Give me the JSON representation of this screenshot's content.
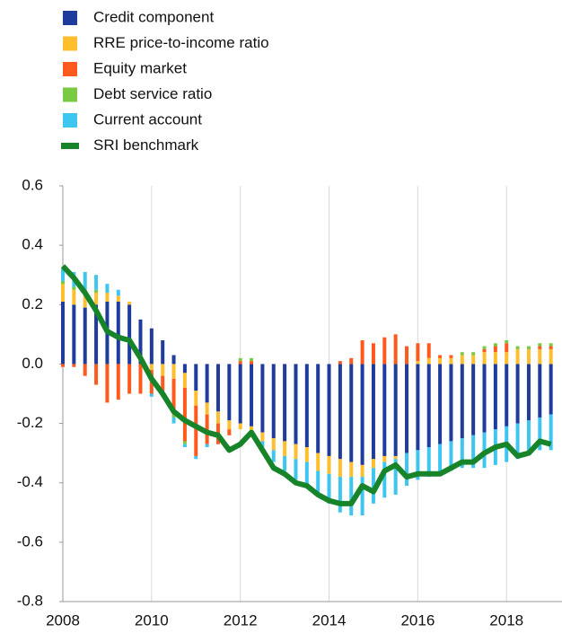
{
  "chart_data": {
    "type": "stacked_bar_line",
    "x": [
      2008,
      2008.25,
      2008.5,
      2008.75,
      2009,
      2009.25,
      2009.5,
      2009.75,
      2010,
      2010.25,
      2010.5,
      2010.75,
      2011,
      2011.25,
      2011.5,
      2011.75,
      2012,
      2012.25,
      2012.5,
      2012.75,
      2013,
      2013.25,
      2013.5,
      2013.75,
      2014,
      2014.25,
      2014.5,
      2014.75,
      2015,
      2015.25,
      2015.5,
      2015.75,
      2016,
      2016.25,
      2016.5,
      2016.75,
      2017,
      2017.25,
      2017.5,
      2017.75,
      2018,
      2018.25,
      2018.5,
      2018.75,
      2019
    ],
    "series": [
      {
        "name": "Credit component",
        "color": "#1f3b9c",
        "values": [
          0.21,
          0.2,
          0.19,
          0.2,
          0.21,
          0.21,
          0.2,
          0.15,
          0.12,
          0.08,
          0.03,
          -0.03,
          -0.09,
          -0.13,
          -0.16,
          -0.19,
          -0.2,
          -0.21,
          -0.23,
          -0.25,
          -0.26,
          -0.27,
          -0.28,
          -0.3,
          -0.31,
          -0.32,
          -0.33,
          -0.34,
          -0.32,
          -0.31,
          -0.31,
          -0.3,
          -0.29,
          -0.28,
          -0.27,
          -0.26,
          -0.25,
          -0.24,
          -0.23,
          -0.22,
          -0.21,
          -0.2,
          -0.19,
          -0.18,
          -0.17
        ]
      },
      {
        "name": "RRE price-to-income ratio",
        "color": "#ffbe2e",
        "values": [
          0.06,
          0.05,
          0.05,
          0.04,
          0.03,
          0.02,
          0.01,
          0,
          -0.02,
          -0.04,
          -0.05,
          -0.05,
          -0.05,
          -0.04,
          -0.04,
          -0.03,
          -0.02,
          -0.02,
          -0.03,
          -0.04,
          -0.05,
          -0.05,
          -0.05,
          -0.06,
          -0.06,
          -0.06,
          -0.05,
          -0.04,
          -0.03,
          -0.02,
          -0.01,
          0,
          0.01,
          0.02,
          0.02,
          0.02,
          0.03,
          0.03,
          0.04,
          0.04,
          0.04,
          0.05,
          0.05,
          0.05,
          0.05
        ]
      },
      {
        "name": "Equity market",
        "color": "#ff5a1e",
        "values": [
          -0.01,
          -0.01,
          -0.04,
          -0.07,
          -0.13,
          -0.12,
          -0.1,
          -0.1,
          -0.08,
          -0.05,
          -0.12,
          -0.18,
          -0.17,
          -0.1,
          -0.07,
          -0.02,
          0.01,
          0.01,
          0,
          0,
          0,
          0,
          0,
          0,
          0,
          0.01,
          0.02,
          0.08,
          0.07,
          0.09,
          0.1,
          0.06,
          0.06,
          0.05,
          0.01,
          0.01,
          0,
          0,
          0.01,
          0.02,
          0.03,
          0,
          0,
          0.01,
          0.01
        ]
      },
      {
        "name": "Debt service ratio",
        "color": "#7ac943",
        "values": [
          0.01,
          0.01,
          0.01,
          0.01,
          0,
          0,
          0,
          0,
          0,
          0,
          -0.01,
          -0.01,
          0,
          0,
          0,
          0,
          0.01,
          0.01,
          0,
          0,
          0,
          0,
          0,
          0,
          0,
          0,
          0,
          0,
          0,
          0,
          0,
          0,
          0,
          0,
          0,
          0,
          0.01,
          0.01,
          0.01,
          0.01,
          0.01,
          0.01,
          0.01,
          0.01,
          0.01
        ]
      },
      {
        "name": "Current account",
        "color": "#3ec6f0",
        "values": [
          0.04,
          0.05,
          0.06,
          0.05,
          0.03,
          0.02,
          0,
          0,
          -0.01,
          -0.02,
          -0.02,
          -0.01,
          -0.01,
          -0.01,
          0,
          0,
          0,
          0,
          -0.02,
          -0.04,
          -0.05,
          -0.07,
          -0.08,
          -0.08,
          -0.1,
          -0.12,
          -0.13,
          -0.13,
          -0.12,
          -0.12,
          -0.12,
          -0.11,
          -0.1,
          -0.1,
          -0.1,
          -0.1,
          -0.1,
          -0.11,
          -0.12,
          -0.12,
          -0.12,
          -0.12,
          -0.11,
          -0.11,
          -0.12
        ]
      },
      {
        "name": "SRI benchmark",
        "color": "#17842a",
        "kind": "line",
        "values": [
          0.33,
          0.29,
          0.24,
          0.18,
          0.11,
          0.09,
          0.08,
          0.02,
          -0.05,
          -0.1,
          -0.16,
          -0.19,
          -0.21,
          -0.23,
          -0.24,
          -0.29,
          -0.27,
          -0.23,
          -0.29,
          -0.35,
          -0.37,
          -0.4,
          -0.41,
          -0.44,
          -0.46,
          -0.47,
          -0.47,
          -0.41,
          -0.43,
          -0.36,
          -0.34,
          -0.38,
          -0.37,
          -0.37,
          -0.37,
          -0.35,
          -0.33,
          -0.33,
          -0.3,
          -0.28,
          -0.27,
          -0.31,
          -0.3,
          -0.26,
          -0.27
        ]
      }
    ],
    "xlim": [
      2008,
      2019.25
    ],
    "xticks": [
      2008,
      2010,
      2012,
      2014,
      2016,
      2018
    ],
    "ylim": [
      -0.8,
      0.6
    ],
    "yticks": [
      {
        "value": -0.8,
        "label": "-0.8"
      },
      {
        "value": -0.6,
        "label": "-0.6"
      },
      {
        "value": -0.4,
        "label": "-0.4"
      },
      {
        "value": -0.2,
        "label": "-0.2"
      },
      {
        "value": 0,
        "label": "0.0"
      },
      {
        "value": 0.2,
        "label": "0.2"
      },
      {
        "value": 0.4,
        "label": "0.4"
      },
      {
        "value": 0.6,
        "label": "0.6"
      }
    ],
    "grid": "x",
    "legend": "top-left"
  }
}
